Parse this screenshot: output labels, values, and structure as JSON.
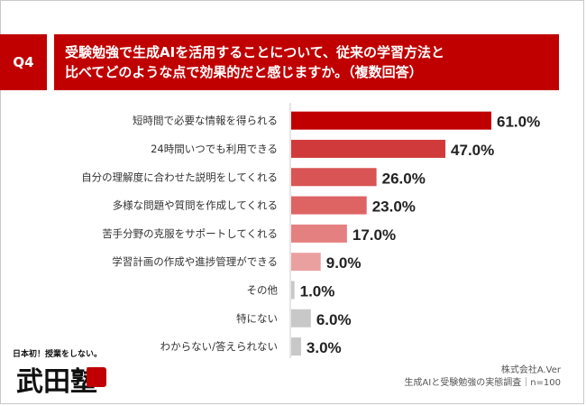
{
  "question": {
    "number": "Q4",
    "title_line1": "受験勉強で生成AIを活用することについて、従来の学習方法と",
    "title_line2": "比べてどのような点で効果的だと感じますか。（複数回答）"
  },
  "chart_data": {
    "type": "bar",
    "orientation": "horizontal",
    "unit": "%",
    "categories": [
      "短時間で必要な情報を得られる",
      "24時間いつでも利用できる",
      "自分の理解度に合わせた説明をしてくれる",
      "多様な問題や質問を作成してくれる",
      "苦手分野の克服をサポートしてくれる",
      "学習計画の作成や進捗管理ができる",
      "その他",
      "特にない",
      "わからない/答えられない"
    ],
    "values": [
      61.0,
      47.0,
      26.0,
      23.0,
      17.0,
      9.0,
      1.0,
      6.0,
      3.0
    ],
    "value_labels": [
      "61.0%",
      "47.0%",
      "26.0%",
      "23.0%",
      "17.0%",
      "9.0%",
      "1.0%",
      "6.0%",
      "3.0%"
    ],
    "colors": [
      "#c00000",
      "#d13a3a",
      "#d95454",
      "#de6464",
      "#e58080",
      "#eba0a0",
      "#c8c8c8",
      "#c8c8c8",
      "#c8c8c8"
    ],
    "xlim": [
      0,
      61
    ]
  },
  "footer": {
    "company": "株式会社A.Ver",
    "survey": "生成AIと受験勉強の実態調査｜n=100"
  },
  "logo": {
    "tagline": "日本初！授業をしない。",
    "name": "武田塾"
  }
}
